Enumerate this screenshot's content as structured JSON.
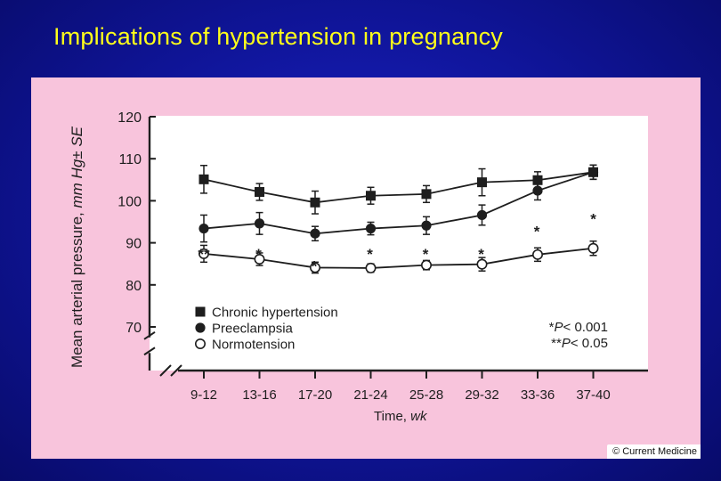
{
  "slide": {
    "title": "Implications of hypertension in pregnancy",
    "copyright": "© Current Medicine"
  },
  "colors": {
    "background": "#0f1496",
    "title": "#ffff1a",
    "panel": "#f8c4dc",
    "plot_area": "#ffffff",
    "ink": "#1e1e1e"
  },
  "chart_data": {
    "type": "line",
    "categories": [
      "9-12",
      "13-16",
      "17-20",
      "21-24",
      "25-28",
      "29-32",
      "33-36",
      "37-40"
    ],
    "xlabel_main": "Time,",
    "xlabel_unit": "wk",
    "ylabel_main": "Mean arterial pressure,",
    "ylabel_unit": "mm Hg± SE",
    "ylim": [
      70,
      120
    ],
    "yticks": [
      70,
      80,
      90,
      100,
      110,
      120
    ],
    "axis_break": true,
    "grid": false,
    "legend_position": "bottom-left",
    "series": [
      {
        "name": "Chronic hypertension",
        "marker": "filled-square",
        "values": [
          105.1,
          102.1,
          99.6,
          101.2,
          101.6,
          104.4,
          104.9,
          106.8
        ],
        "se": [
          3.3,
          2.0,
          2.7,
          2.0,
          2.0,
          3.2,
          2.0,
          1.7
        ]
      },
      {
        "name": "Preeclampsia",
        "marker": "filled-circle",
        "values": [
          93.4,
          94.6,
          92.2,
          93.4,
          94.1,
          96.6,
          102.4,
          106.8
        ],
        "se": [
          3.2,
          2.6,
          1.7,
          1.5,
          2.1,
          2.4,
          2.2,
          1.7
        ]
      },
      {
        "name": "Normotension",
        "marker": "open-circle",
        "values": [
          87.4,
          86.1,
          84.1,
          84.0,
          84.7,
          84.9,
          87.2,
          88.7
        ],
        "se": [
          2.0,
          1.5,
          1.3,
          1.0,
          1.1,
          1.6,
          1.6,
          1.7
        ]
      }
    ],
    "significance_marks": [
      "**",
      "*",
      "*",
      "*",
      "*",
      "*",
      "*",
      "*"
    ],
    "footnotes": [
      {
        "stars": "*",
        "p_label": "P",
        "p_value": "< 0.001"
      },
      {
        "stars": "**",
        "p_label": "P",
        "p_value": "< 0.05"
      }
    ]
  }
}
